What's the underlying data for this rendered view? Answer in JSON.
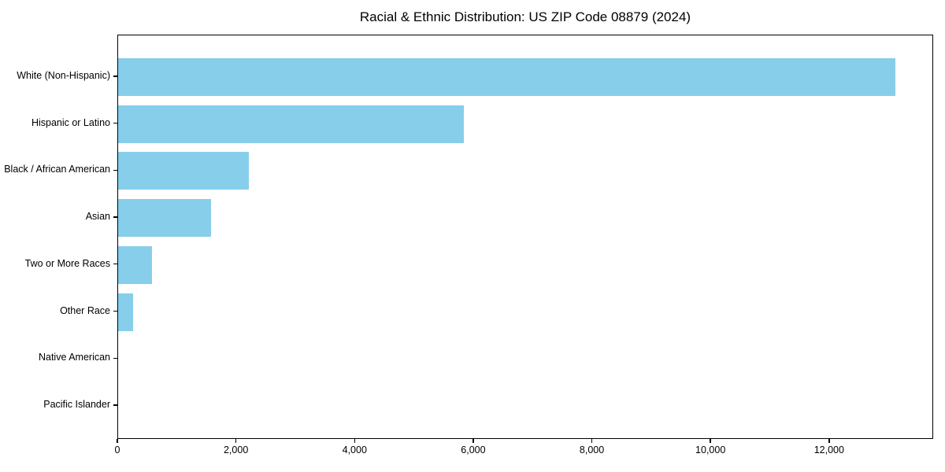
{
  "chart_data": {
    "type": "bar",
    "orientation": "horizontal",
    "title": "Racial & Ethnic Distribution: US ZIP Code 08879 (2024)",
    "categories": [
      "White (Non-Hispanic)",
      "Hispanic or Latino",
      "Black / African American",
      "Asian",
      "Two or More Races",
      "Other Race",
      "Native American",
      "Pacific Islander"
    ],
    "values": [
      13100,
      5830,
      2200,
      1570,
      570,
      250,
      0,
      0
    ],
    "xlabel": "",
    "ylabel": "",
    "xlim": [
      0,
      13755
    ],
    "x_ticks": [
      0,
      2000,
      4000,
      6000,
      8000,
      10000,
      12000
    ],
    "x_tick_labels": [
      "0",
      "2,000",
      "4,000",
      "6,000",
      "8,000",
      "10,000",
      "12,000"
    ],
    "bar_color": "#87CEEB",
    "background_color": "#ffffff",
    "text_color": "#000000",
    "grid": false,
    "legend": false
  }
}
